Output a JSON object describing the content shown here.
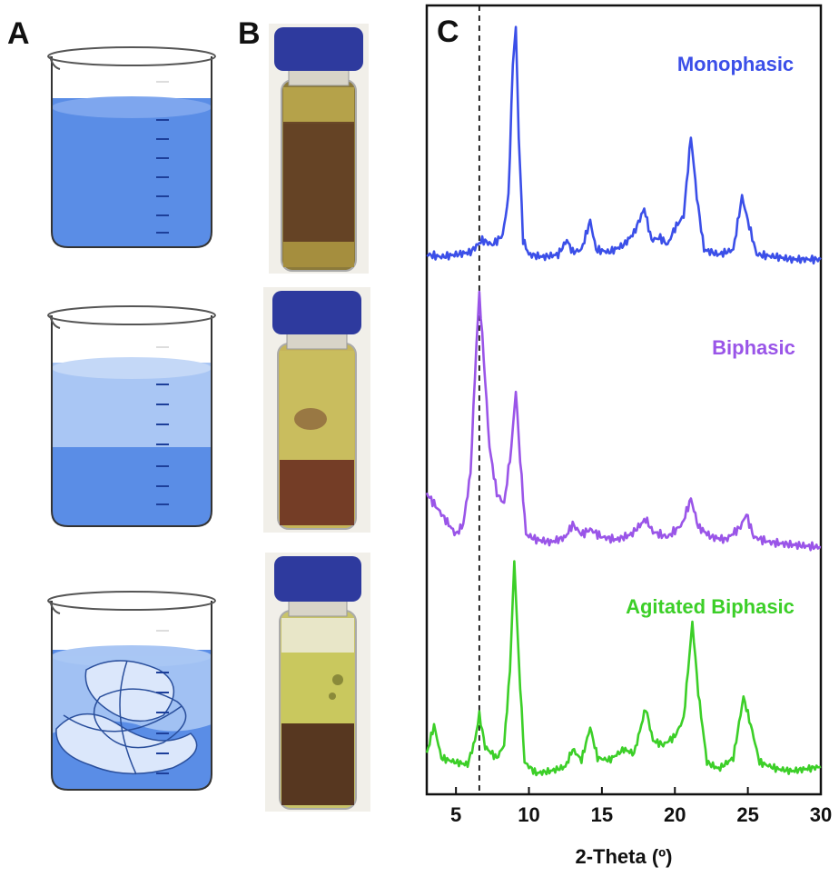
{
  "panels": {
    "a": "A",
    "b": "B",
    "c": "C"
  },
  "beakers": [
    {
      "name": "monophasic-beaker",
      "mode": "single"
    },
    {
      "name": "biphasic-beaker",
      "mode": "two-layer"
    },
    {
      "name": "agitated-biphasic-beaker",
      "mode": "mixed"
    }
  ],
  "colors": {
    "liquid_dark": "#5a8de6",
    "liquid_light": "#a9c6f4",
    "liquid_pale": "#dbe7fb",
    "monophasic": "#3b4fe8",
    "biphasic": "#9a55e8",
    "agitated": "#3ccf28",
    "vial_cap": "#2e3a9e"
  },
  "chart_data": {
    "type": "line",
    "xlabel": "2-Theta (º)",
    "xlim": [
      3,
      30
    ],
    "xticks": [
      5,
      10,
      15,
      20,
      25,
      30
    ],
    "reference_line_x": 6.6,
    "series": [
      {
        "name": "Monophasic",
        "color": "#3b4fe8",
        "points": [
          [
            3,
            0.06
          ],
          [
            4,
            0.05
          ],
          [
            5,
            0.06
          ],
          [
            6,
            0.07
          ],
          [
            6.8,
            0.12
          ],
          [
            7.5,
            0.1
          ],
          [
            8.2,
            0.14
          ],
          [
            8.6,
            0.3
          ],
          [
            8.9,
            0.85
          ],
          [
            9.1,
            1.0
          ],
          [
            9.3,
            0.55
          ],
          [
            9.6,
            0.12
          ],
          [
            10,
            0.06
          ],
          [
            11,
            0.05
          ],
          [
            12,
            0.06
          ],
          [
            12.6,
            0.12
          ],
          [
            13,
            0.07
          ],
          [
            13.6,
            0.08
          ],
          [
            14.2,
            0.2
          ],
          [
            14.6,
            0.08
          ],
          [
            15.5,
            0.07
          ],
          [
            16.5,
            0.1
          ],
          [
            17.2,
            0.15
          ],
          [
            17.9,
            0.25
          ],
          [
            18.4,
            0.12
          ],
          [
            19,
            0.13
          ],
          [
            19.5,
            0.1
          ],
          [
            20,
            0.17
          ],
          [
            20.6,
            0.22
          ],
          [
            21.1,
            0.55
          ],
          [
            21.5,
            0.3
          ],
          [
            22,
            0.08
          ],
          [
            23,
            0.06
          ],
          [
            24,
            0.08
          ],
          [
            24.6,
            0.3
          ],
          [
            25,
            0.2
          ],
          [
            25.6,
            0.06
          ],
          [
            27,
            0.05
          ],
          [
            28,
            0.04
          ],
          [
            30,
            0.04
          ]
        ]
      },
      {
        "name": "Biphasic",
        "color": "#9a55e8",
        "points": [
          [
            3,
            0.22
          ],
          [
            4,
            0.14
          ],
          [
            5,
            0.06
          ],
          [
            5.5,
            0.1
          ],
          [
            6,
            0.3
          ],
          [
            6.4,
            0.8
          ],
          [
            6.6,
            1.0
          ],
          [
            6.9,
            0.75
          ],
          [
            7.3,
            0.4
          ],
          [
            7.8,
            0.22
          ],
          [
            8.3,
            0.18
          ],
          [
            8.8,
            0.4
          ],
          [
            9.1,
            0.62
          ],
          [
            9.4,
            0.35
          ],
          [
            9.8,
            0.06
          ],
          [
            10.5,
            0.04
          ],
          [
            11.5,
            0.03
          ],
          [
            12.5,
            0.05
          ],
          [
            13,
            0.1
          ],
          [
            13.6,
            0.06
          ],
          [
            14.2,
            0.08
          ],
          [
            15,
            0.05
          ],
          [
            16,
            0.04
          ],
          [
            17,
            0.06
          ],
          [
            18,
            0.12
          ],
          [
            18.5,
            0.07
          ],
          [
            19.5,
            0.05
          ],
          [
            20.5,
            0.1
          ],
          [
            21.1,
            0.2
          ],
          [
            21.6,
            0.09
          ],
          [
            22.5,
            0.05
          ],
          [
            23.5,
            0.04
          ],
          [
            24.5,
            0.09
          ],
          [
            24.9,
            0.14
          ],
          [
            25.4,
            0.05
          ],
          [
            26.5,
            0.03
          ],
          [
            28,
            0.02
          ],
          [
            30,
            0.01
          ]
        ]
      },
      {
        "name": "Agitated Biphasic",
        "color": "#3ccf28",
        "points": [
          [
            3,
            0.12
          ],
          [
            3.5,
            0.25
          ],
          [
            4,
            0.1
          ],
          [
            5,
            0.08
          ],
          [
            5.8,
            0.07
          ],
          [
            6.3,
            0.18
          ],
          [
            6.6,
            0.3
          ],
          [
            7,
            0.15
          ],
          [
            7.8,
            0.1
          ],
          [
            8.3,
            0.16
          ],
          [
            8.7,
            0.5
          ],
          [
            9.0,
            1.0
          ],
          [
            9.3,
            0.55
          ],
          [
            9.7,
            0.08
          ],
          [
            10.5,
            0.03
          ],
          [
            11.5,
            0.04
          ],
          [
            12.5,
            0.06
          ],
          [
            13,
            0.14
          ],
          [
            13.6,
            0.09
          ],
          [
            14.2,
            0.24
          ],
          [
            14.7,
            0.1
          ],
          [
            15.5,
            0.09
          ],
          [
            16.5,
            0.14
          ],
          [
            17.2,
            0.12
          ],
          [
            18,
            0.33
          ],
          [
            18.5,
            0.18
          ],
          [
            19.2,
            0.16
          ],
          [
            20,
            0.2
          ],
          [
            20.6,
            0.28
          ],
          [
            21.2,
            0.72
          ],
          [
            21.6,
            0.4
          ],
          [
            22.2,
            0.08
          ],
          [
            23,
            0.05
          ],
          [
            24,
            0.1
          ],
          [
            24.7,
            0.38
          ],
          [
            25.2,
            0.25
          ],
          [
            25.8,
            0.08
          ],
          [
            27,
            0.05
          ],
          [
            28,
            0.04
          ],
          [
            29,
            0.05
          ],
          [
            30,
            0.06
          ]
        ]
      }
    ]
  }
}
